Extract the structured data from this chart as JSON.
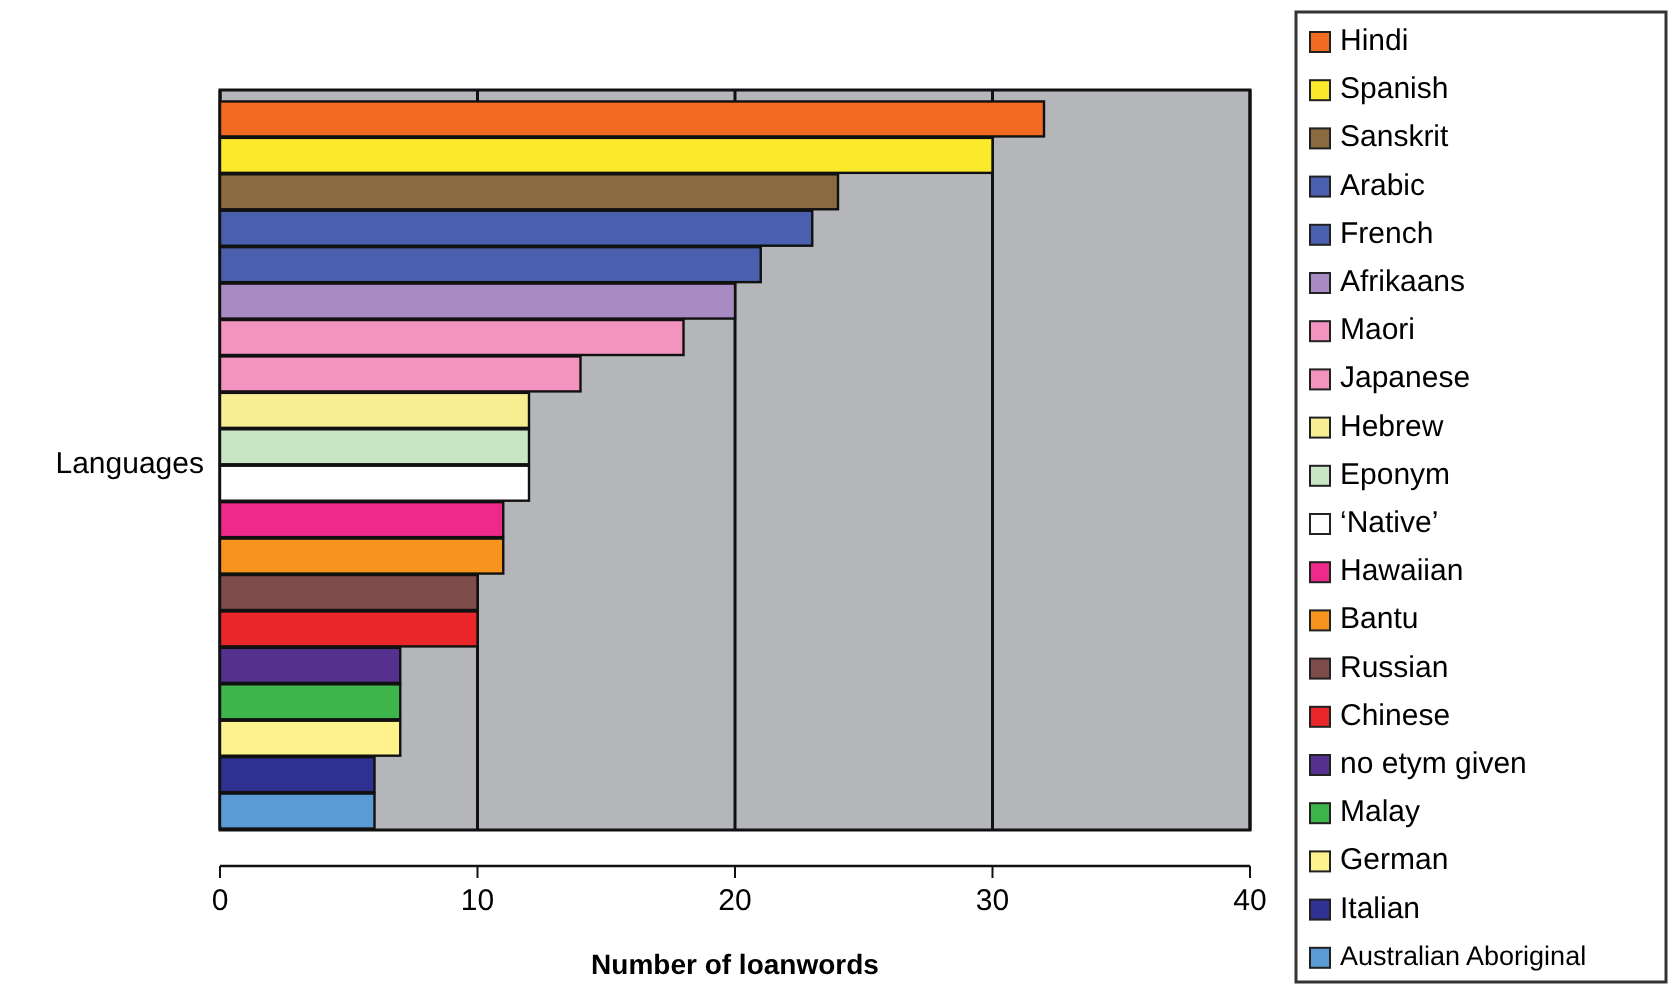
{
  "chart_data": {
    "type": "bar",
    "orientation": "horizontal",
    "categories": [
      null
    ],
    "ylabel": "Languages",
    "xlabel": "Number of loanwords",
    "xlim": [
      0,
      40
    ],
    "xticks": [
      0,
      10,
      20,
      30,
      40
    ],
    "grid": "x",
    "legend": "right",
    "series": [
      {
        "name": "Hindi",
        "color": "#f26b22",
        "values": [
          32
        ]
      },
      {
        "name": "Spanish",
        "color": "#fbe92c",
        "values": [
          30
        ]
      },
      {
        "name": "Sanskrit",
        "color": "#8a6a3e",
        "values": [
          24
        ]
      },
      {
        "name": "Arabic",
        "color": "#4a5fad",
        "values": [
          23
        ]
      },
      {
        "name": "French",
        "color": "#4a5fad",
        "values": [
          21
        ]
      },
      {
        "name": "Afrikaans",
        "color": "#a98bc4",
        "values": [
          20
        ]
      },
      {
        "name": "Maori",
        "color": "#f394c0",
        "values": [
          18
        ]
      },
      {
        "name": "Japanese",
        "color": "#f394c0",
        "values": [
          14
        ]
      },
      {
        "name": "Hebrew",
        "color": "#f7ee93",
        "values": [
          12
        ]
      },
      {
        "name": "Eponym",
        "color": "#c9e6c4",
        "values": [
          12
        ]
      },
      {
        "name": "‘Native’",
        "color": "#ffffff",
        "values": [
          12
        ]
      },
      {
        "name": "Hawaiian",
        "color": "#ed2a8a",
        "values": [
          11
        ]
      },
      {
        "name": "Bantu",
        "color": "#f7941e",
        "values": [
          11
        ]
      },
      {
        "name": "Russian",
        "color": "#7f4c4c",
        "values": [
          10
        ]
      },
      {
        "name": "Chinese",
        "color": "#e9262a",
        "values": [
          10
        ]
      },
      {
        "name": "no etym given",
        "color": "#55308f",
        "values": [
          7
        ]
      },
      {
        "name": "Malay",
        "color": "#3db54a",
        "values": [
          7
        ]
      },
      {
        "name": "German",
        "color": "#fdf28c",
        "values": [
          7
        ]
      },
      {
        "name": "Italian",
        "color": "#2e3192",
        "values": [
          6
        ]
      },
      {
        "name": "Australian Aboriginal",
        "color": "#5b9bd5",
        "values": [
          6
        ]
      }
    ]
  }
}
